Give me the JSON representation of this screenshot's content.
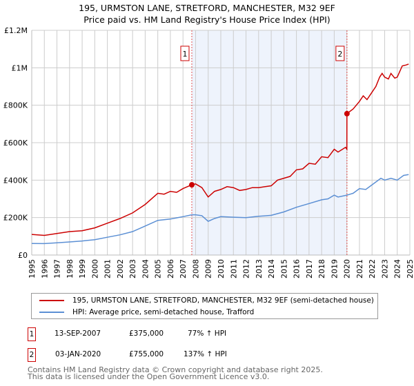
{
  "title_line1": "195, URMSTON LANE, STRETFORD, MANCHESTER, M32 9EF",
  "title_line2": "Price paid vs. HM Land Registry's House Price Index (HPI)",
  "chart_data": {
    "type": "line",
    "title": "195, URMSTON LANE, STRETFORD, MANCHESTER, M32 9EF - Price paid vs. HM Land Registry's House Price Index (HPI)",
    "xlim": [
      1995,
      2025
    ],
    "ylim": [
      0,
      1200000
    ],
    "grid": true,
    "y_ticks": [
      {
        "v": 0,
        "label": "£0"
      },
      {
        "v": 200000,
        "label": "£200K"
      },
      {
        "v": 400000,
        "label": "£400K"
      },
      {
        "v": 600000,
        "label": "£600K"
      },
      {
        "v": 800000,
        "label": "£800K"
      },
      {
        "v": 1000000,
        "label": "£1M"
      },
      {
        "v": 1200000,
        "label": "£1.2M"
      }
    ],
    "x_ticks": [
      "1995",
      "1996",
      "1997",
      "1998",
      "1999",
      "2000",
      "2001",
      "2002",
      "2003",
      "2004",
      "2005",
      "2006",
      "2007",
      "2008",
      "2009",
      "2010",
      "2011",
      "2012",
      "2013",
      "2014",
      "2015",
      "2016",
      "2017",
      "2018",
      "2019",
      "2020",
      "2021",
      "2022",
      "2023",
      "2024",
      "2025"
    ],
    "shaded_range": [
      2007.7,
      2020.01
    ],
    "series": [
      {
        "name": "195, URMSTON LANE, STRETFORD, MANCHESTER, M32 9EF (semi-detached house)",
        "color": "#cc0000",
        "x": [
          1995,
          1996,
          1997,
          1998,
          1999,
          2000,
          2001,
          2002,
          2003,
          2004,
          2005,
          2005.5,
          2006,
          2006.5,
          2007,
          2007.7,
          2008,
          2008.5,
          2009,
          2009.5,
          2010,
          2010.5,
          2011,
          2011.5,
          2012,
          2012.5,
          2013,
          2014,
          2014.5,
          2015,
          2015.5,
          2016,
          2016.5,
          2017,
          2017.5,
          2018,
          2018.5,
          2019,
          2019.3,
          2019.9,
          2020.0,
          2020.01,
          2020.5,
          2021,
          2021.3,
          2021.6,
          2022,
          2022.3,
          2022.6,
          2022.8,
          2023,
          2023.3,
          2023.5,
          2023.8,
          2024,
          2024.4,
          2024.7,
          2024.9
        ],
        "y": [
          110000,
          105000,
          115000,
          125000,
          130000,
          145000,
          170000,
          195000,
          225000,
          270000,
          330000,
          325000,
          340000,
          335000,
          355000,
          375000,
          380000,
          360000,
          310000,
          340000,
          350000,
          365000,
          360000,
          345000,
          350000,
          360000,
          360000,
          370000,
          400000,
          410000,
          420000,
          455000,
          460000,
          490000,
          485000,
          525000,
          520000,
          565000,
          550000,
          575000,
          565000,
          755000,
          780000,
          820000,
          850000,
          830000,
          870000,
          900000,
          950000,
          970000,
          950000,
          940000,
          970000,
          945000,
          950000,
          1010000,
          1015000,
          1020000
        ]
      },
      {
        "name": "HPI: Average price, semi-detached house, Trafford",
        "color": "#5b8fd4",
        "x": [
          1995,
          1996,
          1997,
          1998,
          1999,
          2000,
          2001,
          2002,
          2003,
          2004,
          2005,
          2006,
          2007,
          2007.7,
          2008,
          2008.5,
          2009,
          2009.5,
          2010,
          2011,
          2012,
          2013,
          2014,
          2015,
          2016,
          2017,
          2018,
          2018.5,
          2019,
          2019.3,
          2020,
          2020.5,
          2021,
          2021.5,
          2022,
          2022.7,
          2023,
          2023.5,
          2024,
          2024.5,
          2024.9
        ],
        "y": [
          62000,
          61000,
          65000,
          70000,
          75000,
          82000,
          95000,
          108000,
          125000,
          155000,
          185000,
          192000,
          205000,
          215000,
          215000,
          210000,
          180000,
          195000,
          205000,
          202000,
          200000,
          207000,
          212000,
          230000,
          255000,
          275000,
          295000,
          300000,
          320000,
          310000,
          320000,
          330000,
          355000,
          350000,
          375000,
          410000,
          400000,
          410000,
          400000,
          425000,
          430000
        ]
      }
    ],
    "markers": [
      {
        "label": "1",
        "x": 2007.7,
        "y": 375000
      },
      {
        "label": "2",
        "x": 2020.01,
        "y": 755000
      }
    ]
  },
  "sales": [
    {
      "num": "1",
      "date": "13-SEP-2007",
      "price": "£375,000",
      "hpi": "77% ↑ HPI"
    },
    {
      "num": "2",
      "date": "03-JAN-2020",
      "price": "£755,000",
      "hpi": "137% ↑ HPI"
    }
  ],
  "footer_line1": "Contains HM Land Registry data © Crown copyright and database right 2025.",
  "footer_line2": "This data is licensed under the Open Government Licence v3.0."
}
